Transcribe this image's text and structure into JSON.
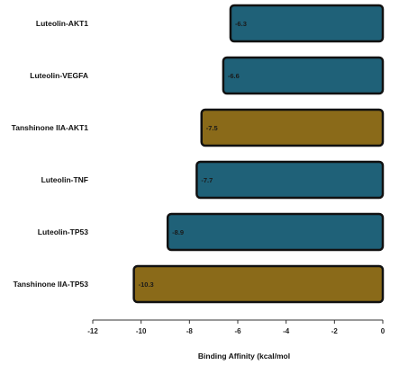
{
  "chart_data": {
    "type": "bar",
    "orientation": "horizontal",
    "categories": [
      "Luteolin-AKT1",
      "Luteolin-VEGFA",
      "Tanshinone IIA-AKT1",
      "Luteolin-TNF",
      "Luteolin-TP53",
      "Tanshinone IIA-TP53"
    ],
    "values": [
      -6.3,
      -6.6,
      -7.5,
      -7.7,
      -8.9,
      -10.3
    ],
    "value_labels": [
      "-6.3",
      "-6.6",
      "-7.5",
      "-7.7",
      "-8.9",
      "-10.3"
    ],
    "bar_colors": [
      "#1f6178",
      "#1f6178",
      "#8a6a19",
      "#1f6178",
      "#1f6178",
      "#8a6a19"
    ],
    "xlabel": "Binding Affinity (kcal/mol",
    "ylabel": "",
    "title": "",
    "xlim": [
      -12,
      0
    ],
    "xticks": [
      -12,
      -10,
      -8,
      -6,
      -4,
      -2,
      0
    ],
    "grid": false,
    "legend": "none"
  }
}
